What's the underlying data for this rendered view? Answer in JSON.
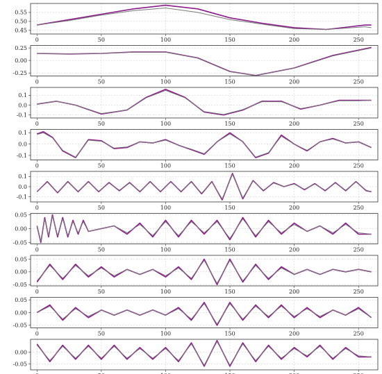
{
  "colors": {
    "reference": "#8b1a8b",
    "reconstruction": "#7a7a7a",
    "grid": "#c8c8c8",
    "frame": "#333333"
  },
  "x_ticks": [
    "0",
    "50",
    "100",
    "150",
    "200",
    "250"
  ],
  "x_tick_values": [
    0,
    50,
    100,
    150,
    200,
    250
  ],
  "xlim": [
    -5,
    265
  ],
  "panels": [
    {
      "yticks": [
        "0.55",
        "0.50",
        "0.45"
      ],
      "ytick_values": [
        0.55,
        0.5,
        0.45
      ]
    },
    {
      "yticks": [
        "0.25",
        "0.00",
        "-0.25"
      ],
      "ytick_values": [
        0.25,
        0.0,
        -0.25
      ]
    },
    {
      "yticks": [
        "0.1",
        "0.0",
        "-0.1"
      ],
      "ytick_values": [
        0.1,
        0.0,
        -0.1
      ]
    },
    {
      "yticks": [
        "0.1",
        "0.0",
        "-0.1"
      ],
      "ytick_values": [
        0.1,
        0.0,
        -0.1
      ]
    },
    {
      "yticks": [
        "0.1",
        "0.0",
        "-0.1"
      ],
      "ytick_values": [
        0.1,
        0.0,
        -0.1
      ]
    },
    {
      "yticks": [
        "0.05",
        "0.00",
        "-0.05"
      ],
      "ytick_values": [
        0.05,
        0.0,
        -0.05
      ]
    },
    {
      "yticks": [
        "0.05",
        "0.00",
        "-0.05"
      ],
      "ytick_values": [
        0.05,
        0.0,
        -0.05
      ]
    },
    {
      "yticks": [
        "0.05",
        "0.00",
        "-0.05"
      ],
      "ytick_values": [
        0.05,
        0.0,
        -0.05
      ]
    },
    {
      "yticks": [
        "0.00",
        "-0.05"
      ],
      "ytick_values": [
        0.0,
        -0.05
      ]
    }
  ],
  "chart_data": [
    {
      "type": "line",
      "ylim": [
        0.43,
        0.6
      ],
      "grid": true,
      "series": [
        {
          "x": [
            0,
            25,
            50,
            75,
            100,
            125,
            150,
            175,
            200,
            225,
            255,
            260
          ],
          "values": [
            0.48,
            0.51,
            0.54,
            0.57,
            0.59,
            0.57,
            0.52,
            0.49,
            0.465,
            0.455,
            0.48,
            0.48
          ]
        },
        {
          "x": [
            0,
            25,
            50,
            75,
            100,
            125,
            150,
            175,
            200,
            225,
            255,
            260
          ],
          "values": [
            0.48,
            0.505,
            0.535,
            0.56,
            0.575,
            0.55,
            0.51,
            0.485,
            0.46,
            0.455,
            0.47,
            0.465
          ]
        }
      ]
    },
    {
      "type": "line",
      "ylim": [
        -0.31,
        0.3
      ],
      "grid": true,
      "series": [
        {
          "x": [
            0,
            25,
            50,
            75,
            100,
            125,
            150,
            170,
            200,
            230,
            260
          ],
          "values": [
            0.14,
            0.13,
            0.14,
            0.17,
            0.17,
            0.05,
            -0.22,
            -0.3,
            -0.15,
            0.1,
            0.26
          ]
        },
        {
          "x": [
            0,
            25,
            50,
            75,
            100,
            125,
            150,
            170,
            200,
            230,
            260
          ],
          "values": [
            0.14,
            0.13,
            0.14,
            0.165,
            0.165,
            0.045,
            -0.225,
            -0.3,
            -0.155,
            0.09,
            0.25
          ]
        }
      ]
    },
    {
      "type": "line",
      "ylim": [
        -0.13,
        0.18
      ],
      "grid": true,
      "series": [
        {
          "x": [
            0,
            15,
            30,
            50,
            70,
            85,
            100,
            115,
            130,
            145,
            160,
            175,
            190,
            205,
            220,
            235,
            250,
            260
          ],
          "values": [
            0.01,
            0.04,
            0.0,
            -0.09,
            -0.05,
            0.08,
            0.16,
            0.08,
            -0.07,
            -0.1,
            -0.05,
            0.04,
            0.04,
            -0.04,
            0.0,
            0.05,
            0.05,
            0.05
          ]
        },
        {
          "x": [
            0,
            15,
            30,
            50,
            70,
            85,
            100,
            115,
            130,
            145,
            160,
            175,
            190,
            205,
            220,
            235,
            250,
            260
          ],
          "values": [
            0.01,
            0.04,
            0.0,
            -0.085,
            -0.05,
            0.075,
            0.15,
            0.075,
            -0.065,
            -0.095,
            -0.045,
            0.035,
            0.035,
            -0.035,
            0.0,
            0.045,
            0.045,
            0.05
          ]
        }
      ]
    },
    {
      "type": "line",
      "ylim": [
        -0.14,
        0.13
      ],
      "grid": true,
      "series": [
        {
          "x": [
            0,
            5,
            12,
            20,
            30,
            40,
            50,
            60,
            70,
            80,
            90,
            100,
            110,
            120,
            130,
            140,
            150,
            160,
            170,
            180,
            190,
            200,
            210,
            220,
            230,
            240,
            250,
            260
          ],
          "values": [
            0.09,
            0.11,
            0.06,
            -0.06,
            -0.12,
            0.04,
            0.03,
            -0.04,
            -0.03,
            0.02,
            0.01,
            0.04,
            -0.01,
            -0.05,
            -0.09,
            0.02,
            0.1,
            0.02,
            -0.12,
            -0.08,
            0.08,
            0.0,
            -0.06,
            0.02,
            0.05,
            0.01,
            0.02,
            -0.03
          ]
        },
        {
          "x": [
            0,
            5,
            12,
            20,
            30,
            40,
            50,
            60,
            70,
            80,
            90,
            100,
            110,
            120,
            130,
            140,
            150,
            160,
            170,
            180,
            190,
            200,
            210,
            220,
            230,
            240,
            250,
            260
          ],
          "values": [
            0.085,
            0.1,
            0.055,
            -0.055,
            -0.115,
            0.035,
            0.025,
            -0.035,
            -0.025,
            0.02,
            0.01,
            0.035,
            -0.01,
            -0.045,
            -0.085,
            0.02,
            0.09,
            0.02,
            -0.115,
            -0.075,
            0.07,
            0.0,
            -0.055,
            0.02,
            0.045,
            0.01,
            0.02,
            -0.03
          ]
        }
      ]
    },
    {
      "type": "line",
      "ylim": [
        -0.15,
        0.15
      ],
      "grid": true,
      "series": [
        {
          "x": [
            0,
            8,
            16,
            24,
            32,
            40,
            48,
            56,
            64,
            72,
            80,
            88,
            96,
            104,
            112,
            120,
            128,
            136,
            144,
            152,
            160,
            168,
            176,
            184,
            192,
            200,
            208,
            216,
            224,
            232,
            240,
            248,
            256,
            260
          ],
          "values": [
            -0.05,
            0.05,
            -0.06,
            0.05,
            -0.05,
            0.05,
            -0.05,
            0.04,
            -0.04,
            0.04,
            -0.05,
            0.05,
            -0.05,
            0.05,
            -0.05,
            0.05,
            -0.07,
            0.05,
            -0.13,
            0.13,
            -0.12,
            0.06,
            -0.04,
            0.04,
            0.0,
            0.03,
            -0.03,
            0.03,
            -0.04,
            0.04,
            -0.04,
            0.05,
            -0.04,
            -0.05
          ]
        },
        {
          "x": [
            0,
            8,
            16,
            24,
            32,
            40,
            48,
            56,
            64,
            72,
            80,
            88,
            96,
            104,
            112,
            120,
            128,
            136,
            144,
            152,
            160,
            168,
            176,
            184,
            192,
            200,
            208,
            216,
            224,
            232,
            240,
            248,
            256,
            260
          ],
          "values": [
            -0.05,
            0.045,
            -0.055,
            0.045,
            -0.045,
            0.045,
            -0.045,
            0.035,
            -0.035,
            0.035,
            -0.045,
            0.045,
            -0.045,
            0.045,
            -0.045,
            0.045,
            -0.065,
            0.045,
            -0.12,
            0.12,
            -0.11,
            0.055,
            -0.035,
            0.035,
            0.0,
            0.025,
            -0.025,
            0.025,
            -0.035,
            0.035,
            -0.035,
            0.045,
            -0.035,
            -0.05
          ]
        }
      ]
    },
    {
      "type": "line",
      "ylim": [
        -0.055,
        0.055
      ],
      "grid": true,
      "series": [
        {
          "x": [
            0,
            3,
            6,
            9,
            12,
            16,
            20,
            24,
            28,
            32,
            36,
            40,
            50,
            60,
            70,
            80,
            90,
            100,
            110,
            120,
            130,
            140,
            150,
            160,
            170,
            180,
            190,
            200,
            210,
            220,
            230,
            240,
            250,
            260
          ],
          "values": [
            0.01,
            -0.05,
            0.04,
            -0.03,
            0.05,
            -0.03,
            0.04,
            -0.03,
            0.03,
            -0.02,
            0.03,
            -0.01,
            0.0,
            0.01,
            -0.02,
            0.02,
            -0.03,
            0.03,
            -0.03,
            0.03,
            -0.02,
            0.03,
            -0.04,
            0.04,
            -0.03,
            0.03,
            -0.02,
            0.02,
            -0.01,
            0.01,
            -0.02,
            0.02,
            -0.02,
            -0.02
          ]
        },
        {
          "x": [
            0,
            3,
            6,
            9,
            12,
            16,
            20,
            24,
            28,
            32,
            36,
            40,
            50,
            60,
            70,
            80,
            90,
            100,
            110,
            120,
            130,
            140,
            150,
            160,
            170,
            180,
            190,
            200,
            210,
            220,
            230,
            240,
            250,
            260
          ],
          "values": [
            0.01,
            -0.045,
            0.035,
            -0.025,
            0.045,
            -0.025,
            0.035,
            -0.025,
            0.025,
            -0.015,
            0.025,
            -0.01,
            0.0,
            0.01,
            -0.015,
            0.015,
            -0.025,
            0.025,
            -0.025,
            0.025,
            -0.015,
            0.025,
            -0.035,
            0.035,
            -0.025,
            0.025,
            -0.015,
            0.015,
            -0.01,
            0.01,
            -0.015,
            0.015,
            -0.015,
            -0.02
          ]
        }
      ]
    },
    {
      "type": "line",
      "ylim": [
        -0.055,
        0.065
      ],
      "grid": true,
      "series": [
        {
          "x": [
            0,
            10,
            20,
            30,
            40,
            50,
            60,
            70,
            80,
            90,
            100,
            110,
            120,
            130,
            140,
            150,
            160,
            170,
            180,
            190,
            200,
            210,
            220,
            230,
            240,
            250,
            260
          ],
          "values": [
            -0.04,
            0.03,
            -0.03,
            0.03,
            -0.02,
            0.02,
            -0.02,
            0.01,
            -0.01,
            0.01,
            -0.02,
            0.02,
            -0.03,
            0.05,
            -0.05,
            0.05,
            -0.04,
            0.03,
            -0.03,
            0.02,
            -0.01,
            0.01,
            -0.01,
            0.01,
            0.0,
            0.01,
            0.0
          ]
        },
        {
          "x": [
            0,
            10,
            20,
            30,
            40,
            50,
            60,
            70,
            80,
            90,
            100,
            110,
            120,
            130,
            140,
            150,
            160,
            170,
            180,
            190,
            200,
            210,
            220,
            230,
            240,
            250,
            260
          ],
          "values": [
            -0.035,
            0.025,
            -0.025,
            0.025,
            -0.015,
            0.015,
            -0.015,
            0.01,
            -0.01,
            0.01,
            -0.015,
            0.015,
            -0.025,
            0.045,
            -0.045,
            0.045,
            -0.035,
            0.025,
            -0.025,
            0.015,
            -0.01,
            0.01,
            -0.01,
            0.01,
            0.0,
            0.01,
            0.0
          ]
        }
      ]
    },
    {
      "type": "line",
      "ylim": [
        -0.06,
        0.06
      ],
      "grid": true,
      "series": [
        {
          "x": [
            0,
            10,
            20,
            30,
            40,
            50,
            60,
            70,
            80,
            90,
            100,
            110,
            120,
            130,
            140,
            150,
            160,
            170,
            180,
            190,
            200,
            210,
            220,
            230,
            240,
            250,
            260
          ],
          "values": [
            0.0,
            0.03,
            -0.03,
            0.02,
            -0.02,
            0.01,
            -0.01,
            0.01,
            -0.01,
            0.01,
            -0.01,
            0.02,
            -0.03,
            0.04,
            -0.05,
            0.04,
            -0.03,
            0.03,
            -0.02,
            0.03,
            -0.02,
            0.02,
            -0.02,
            0.01,
            -0.01,
            0.02,
            -0.02
          ]
        },
        {
          "x": [
            0,
            10,
            20,
            30,
            40,
            50,
            60,
            70,
            80,
            90,
            100,
            110,
            120,
            130,
            140,
            150,
            160,
            170,
            180,
            190,
            200,
            210,
            220,
            230,
            240,
            250,
            260
          ],
          "values": [
            0.0,
            0.025,
            -0.025,
            0.015,
            -0.015,
            0.01,
            -0.01,
            0.01,
            -0.01,
            0.01,
            -0.01,
            0.015,
            -0.025,
            0.035,
            -0.045,
            0.035,
            -0.025,
            0.025,
            -0.015,
            0.025,
            -0.015,
            0.015,
            -0.015,
            0.01,
            -0.01,
            0.015,
            -0.02
          ]
        }
      ]
    },
    {
      "type": "line",
      "ylim": [
        -0.075,
        0.055
      ],
      "grid": true,
      "series": [
        {
          "x": [
            0,
            10,
            20,
            30,
            40,
            50,
            60,
            70,
            80,
            90,
            100,
            110,
            120,
            130,
            140,
            150,
            160,
            170,
            180,
            190,
            200,
            210,
            220,
            230,
            240,
            250,
            260
          ],
          "values": [
            0.035,
            -0.04,
            0.03,
            -0.03,
            0.03,
            -0.03,
            0.03,
            -0.03,
            0.02,
            -0.03,
            0.02,
            -0.04,
            0.04,
            -0.06,
            0.05,
            -0.06,
            0.04,
            -0.04,
            0.03,
            -0.03,
            0.02,
            -0.02,
            0.03,
            -0.03,
            0.02,
            -0.02,
            -0.02
          ]
        },
        {
          "x": [
            0,
            10,
            20,
            30,
            40,
            50,
            60,
            70,
            80,
            90,
            100,
            110,
            120,
            130,
            140,
            150,
            160,
            170,
            180,
            190,
            200,
            210,
            220,
            230,
            240,
            250,
            260
          ],
          "values": [
            0.03,
            -0.035,
            0.025,
            -0.025,
            0.025,
            -0.025,
            0.025,
            -0.025,
            0.015,
            -0.025,
            0.015,
            -0.035,
            0.035,
            -0.055,
            0.045,
            -0.055,
            0.035,
            -0.035,
            0.025,
            -0.025,
            0.015,
            -0.015,
            0.025,
            -0.025,
            0.015,
            -0.015,
            -0.02
          ]
        }
      ]
    }
  ]
}
